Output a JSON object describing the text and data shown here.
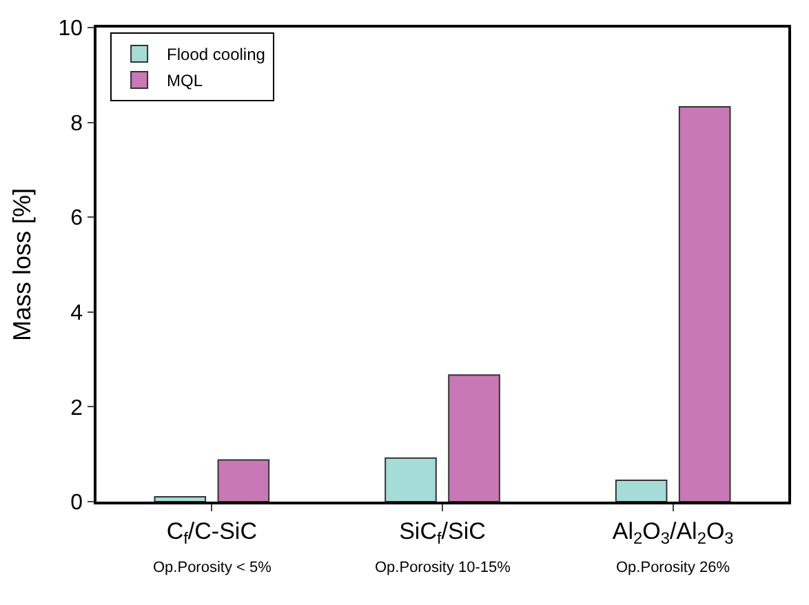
{
  "chart_data": {
    "type": "bar",
    "ylabel": "Mass loss [%]",
    "categories": [
      "C$_{f}$/C-SiC",
      "SiC$_{f}$/SiC",
      "Al$_{2}$O$_{3}$/Al$_{2}$O$_{3}$"
    ],
    "series": [
      {
        "name": "Flood cooling",
        "color": "#a6dcd8",
        "values": [
          0.1,
          0.92,
          0.45
        ]
      },
      {
        "name": "MQL",
        "color": "#c878b4",
        "values": [
          0.88,
          2.67,
          8.33
        ]
      }
    ],
    "ylim": [
      0,
      10
    ],
    "yticks": [
      0,
      2,
      4,
      6,
      8,
      10
    ],
    "legend": "top left",
    "annotations": [
      "Op.Porosity < 5%",
      "Op.Porosity 10-15%",
      "Op.Porosity 26%"
    ]
  }
}
